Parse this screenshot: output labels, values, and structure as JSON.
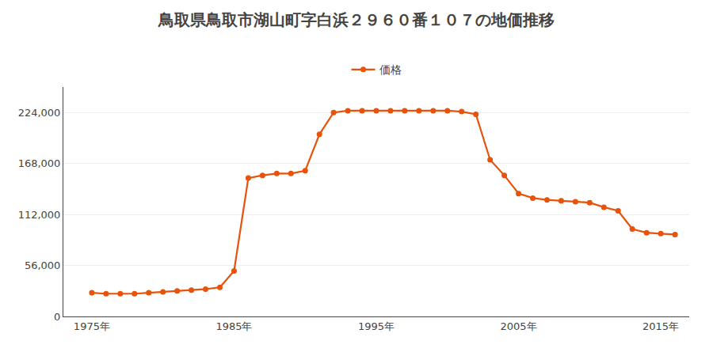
{
  "chart_data": {
    "type": "line",
    "title": "鳥取県鳥取市湖山町字白浜２９６０番１０７の地価推移",
    "x": [
      1975,
      1976,
      1977,
      1978,
      1979,
      1980,
      1981,
      1982,
      1983,
      1984,
      1985,
      1986,
      1987,
      1988,
      1989,
      1990,
      1991,
      1992,
      1993,
      1994,
      1995,
      1996,
      1997,
      1998,
      1999,
      2000,
      2001,
      2002,
      2003,
      2004,
      2005,
      2006,
      2007,
      2008,
      2009,
      2010,
      2011,
      2012,
      2013,
      2014,
      2015,
      2016
    ],
    "series": [
      {
        "name": "価格",
        "color": "#E8520A",
        "marker": "circle",
        "values": [
          26000,
          25000,
          25000,
          25000,
          26000,
          27000,
          28000,
          29000,
          30000,
          32000,
          50000,
          152000,
          155000,
          157000,
          157000,
          160000,
          200000,
          224000,
          226000,
          226000,
          226000,
          226000,
          226000,
          226000,
          226000,
          226000,
          225000,
          222000,
          172000,
          155000,
          135000,
          130000,
          128000,
          127000,
          126000,
          125000,
          120000,
          116000,
          96000,
          92000,
          91000,
          90000
        ]
      }
    ],
    "xlim": [
      1973,
      2017
    ],
    "xticks": [
      {
        "value": 1975,
        "label": "1975年"
      },
      {
        "value": 1985,
        "label": "1985年"
      },
      {
        "value": 1995,
        "label": "1995年"
      },
      {
        "value": 2005,
        "label": "2005年"
      },
      {
        "value": 2015,
        "label": "2015年"
      }
    ],
    "ylim": [
      0,
      252000
    ],
    "yticks": [
      0,
      {
        "value": 56000,
        "label": "56,000"
      },
      {
        "value": 112000,
        "label": "112,000"
      },
      {
        "value": 168000,
        "label": "168,000"
      },
      {
        "value": 224000,
        "label": "224,000"
      }
    ],
    "grid": true,
    "legend": "top"
  }
}
